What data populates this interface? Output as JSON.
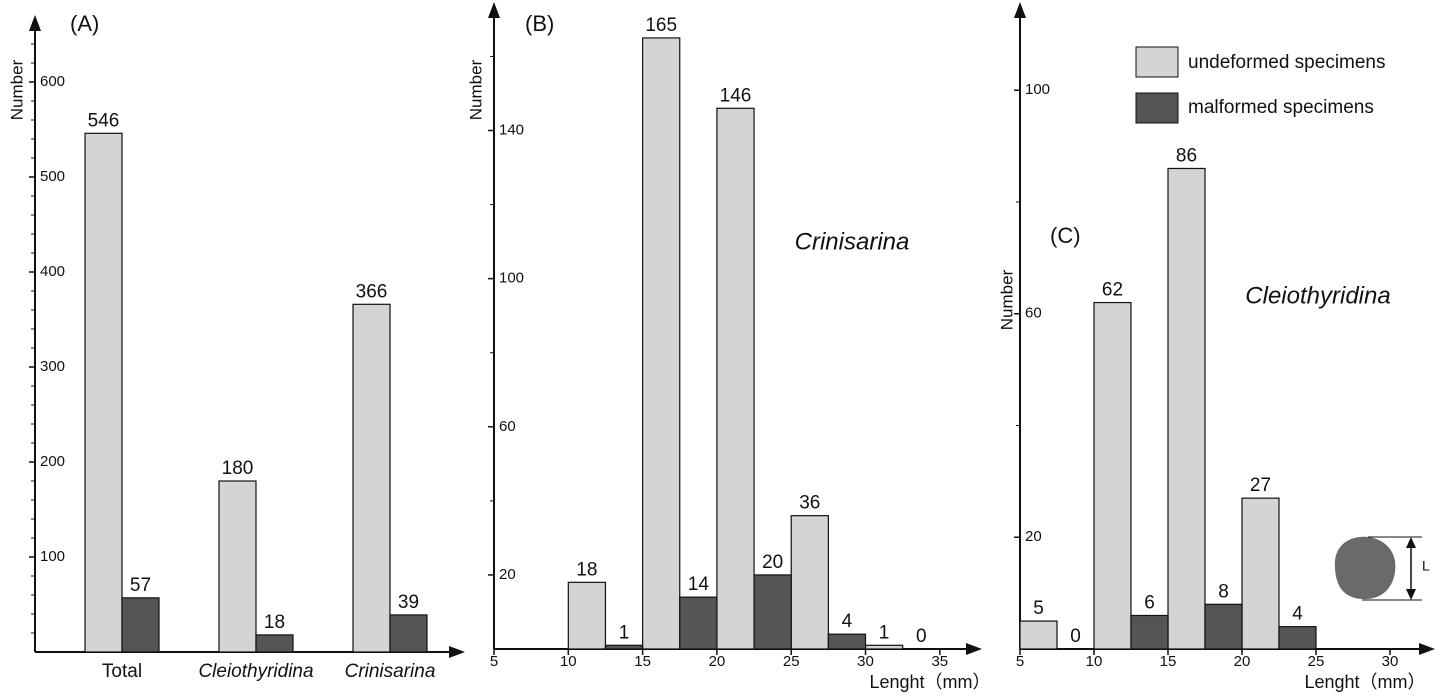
{
  "chart_data": [
    {
      "type": "bar",
      "annotation": "(A)",
      "ylabel": "Number",
      "categories": [
        "Total",
        "Cleiothyridina",
        "Crinisarina"
      ],
      "series": [
        {
          "name": "undeformed specimens",
          "color": "#d4d4d4",
          "values": [
            546,
            180,
            366
          ]
        },
        {
          "name": "malformed specimens",
          "color": "#555555",
          "values": [
            57,
            18,
            39
          ]
        }
      ],
      "ylim": [
        0,
        660
      ],
      "yticks": [
        100,
        200,
        300,
        400,
        500,
        600
      ],
      "minor_yticks": [
        20,
        40,
        60,
        80,
        120,
        140,
        160,
        180,
        220,
        240,
        260,
        280,
        320,
        340,
        360,
        380,
        420,
        440,
        460,
        480,
        520,
        540,
        560,
        580,
        620,
        640
      ]
    },
    {
      "type": "histogram",
      "annotation": "(B)",
      "subtitle": "Crinisarina",
      "ylabel": "Number",
      "xlabel": "Lenght（mm）",
      "bins": [
        10,
        12.5,
        15,
        17.5,
        20,
        22.5,
        25,
        27.5,
        30,
        32.5,
        35
      ],
      "series": [
        {
          "color": "#d4d4d4",
          "values": [
            18,
            null,
            165,
            null,
            146,
            null,
            36,
            null,
            1,
            null
          ]
        },
        {
          "color": "#555555",
          "values": [
            null,
            1,
            null,
            14,
            null,
            20,
            null,
            4,
            null,
            0
          ]
        }
      ],
      "xlim": [
        5,
        37.3
      ],
      "xticks": [
        5,
        10,
        15,
        20,
        25,
        30,
        35
      ],
      "ylim": [
        0,
        172
      ],
      "yticks": [
        20,
        60,
        100,
        140
      ],
      "minor_yticks": [
        40,
        80,
        120,
        160
      ]
    },
    {
      "type": "histogram",
      "annotation": "(C)",
      "subtitle": "Cleiothyridina",
      "ylabel": "Number",
      "xlabel": "Lenght（mm）",
      "image_label": "L",
      "bins": [
        5,
        7.5,
        10,
        12.5,
        15,
        17.5,
        20,
        22.5,
        25
      ],
      "series": [
        {
          "color": "#d4d4d4",
          "values": [
            5,
            null,
            62,
            null,
            86,
            null,
            27,
            null
          ]
        },
        {
          "color": "#555555",
          "values": [
            null,
            0,
            null,
            6,
            null,
            8,
            null,
            4
          ]
        }
      ],
      "xlim": [
        5,
        32.5
      ],
      "xticks": [
        5,
        10,
        15,
        20,
        25,
        30
      ],
      "ylim": [
        0,
        114
      ],
      "yticks": [
        20,
        60,
        100
      ],
      "minor_yticks": [
        40,
        80
      ]
    }
  ]
}
